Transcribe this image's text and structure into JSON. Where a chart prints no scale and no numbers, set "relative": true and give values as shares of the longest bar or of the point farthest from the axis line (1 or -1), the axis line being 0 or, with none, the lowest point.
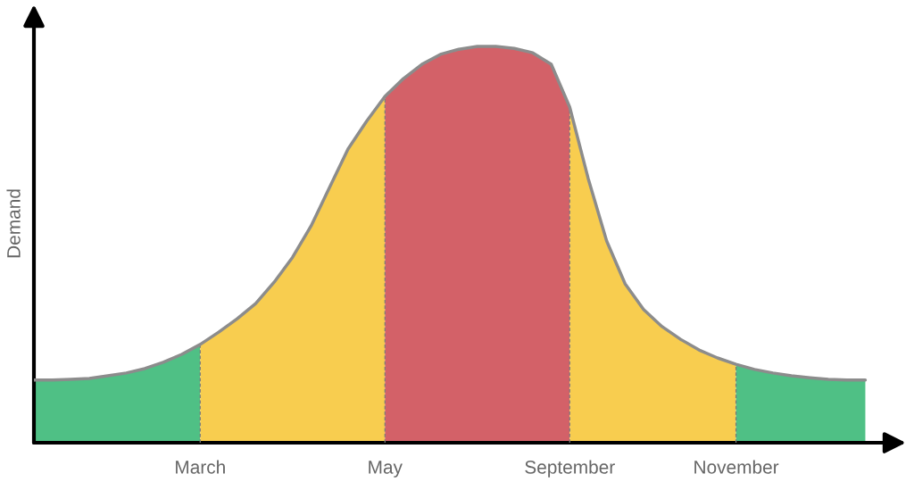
{
  "chart_data": {
    "type": "area",
    "relative": true,
    "ylabel": "Demand",
    "grid": false,
    "categories": [
      null,
      null,
      null,
      null,
      null,
      null,
      null,
      null,
      null,
      "March",
      null,
      null,
      null,
      null,
      null,
      null,
      null,
      null,
      null,
      "May",
      null,
      null,
      null,
      null,
      null,
      null,
      null,
      null,
      null,
      "September",
      null,
      null,
      null,
      null,
      null,
      null,
      null,
      null,
      "November",
      null,
      null,
      null,
      null,
      null,
      null,
      null
    ],
    "series": [
      {
        "color": "#4fc085",
        "values": [
          0.158,
          0.158,
          0.16,
          0.162,
          0.169,
          0.176,
          0.187,
          0.203,
          0.223,
          0.248,
          null,
          null,
          null,
          null,
          null,
          null,
          null,
          null,
          null,
          null,
          null,
          null,
          null,
          null,
          null,
          null,
          null,
          null,
          null,
          null,
          null,
          null,
          null,
          null,
          null,
          null,
          null,
          null,
          null,
          null,
          null,
          null,
          null,
          null,
          null,
          null
        ]
      },
      {
        "color": "#f8cd4f",
        "values": [
          null,
          null,
          null,
          null,
          null,
          null,
          null,
          null,
          null,
          0.248,
          0.279,
          0.313,
          0.351,
          0.405,
          0.468,
          0.547,
          0.644,
          0.741,
          0.811,
          0.874,
          null,
          null,
          null,
          null,
          null,
          null,
          null,
          null,
          null,
          null,
          null,
          null,
          null,
          null,
          null,
          null,
          null,
          null,
          null,
          null,
          null,
          null,
          null,
          null,
          null,
          null
        ]
      },
      {
        "color": "#d36168",
        "values": [
          null,
          null,
          null,
          null,
          null,
          null,
          null,
          null,
          null,
          null,
          null,
          null,
          null,
          null,
          null,
          null,
          null,
          null,
          null,
          0.874,
          0.919,
          0.955,
          0.98,
          0.993,
          1,
          1,
          0.995,
          0.984,
          0.955,
          0.847,
          null,
          null,
          null,
          null,
          null,
          null,
          null,
          null,
          null,
          null,
          null,
          null,
          null,
          null,
          null,
          null
        ]
      },
      {
        "color": "#f8cd4f",
        "values": [
          null,
          null,
          null,
          null,
          null,
          null,
          null,
          null,
          null,
          null,
          null,
          null,
          null,
          null,
          null,
          null,
          null,
          null,
          null,
          null,
          null,
          null,
          null,
          null,
          null,
          null,
          null,
          null,
          null,
          0.847,
          0.667,
          0.509,
          0.401,
          0.336,
          0.293,
          0.261,
          0.234,
          0.214,
          0.198,
          null,
          null,
          null,
          null,
          null,
          null,
          null
        ]
      },
      {
        "color": "#4fc085",
        "values": [
          null,
          null,
          null,
          null,
          null,
          null,
          null,
          null,
          null,
          null,
          null,
          null,
          null,
          null,
          null,
          null,
          null,
          null,
          null,
          null,
          null,
          null,
          null,
          null,
          null,
          null,
          null,
          null,
          null,
          null,
          null,
          null,
          null,
          null,
          null,
          null,
          null,
          null,
          0.198,
          0.185,
          0.176,
          0.169,
          0.164,
          0.16,
          0.158,
          0.158
        ]
      },
      {
        "type": "line",
        "color": "#8c8c8c",
        "values": [
          0.158,
          0.158,
          0.16,
          0.162,
          0.169,
          0.176,
          0.187,
          0.203,
          0.223,
          0.248,
          0.279,
          0.313,
          0.351,
          0.405,
          0.468,
          0.547,
          0.644,
          0.741,
          0.811,
          0.874,
          0.919,
          0.955,
          0.98,
          0.993,
          1,
          1,
          0.995,
          0.984,
          0.955,
          0.847,
          0.667,
          0.509,
          0.401,
          0.336,
          0.293,
          0.261,
          0.234,
          0.214,
          0.198,
          0.185,
          0.176,
          0.169,
          0.164,
          0.16,
          0.158,
          0.158
        ]
      }
    ],
    "ref_lines": [
      {
        "axis": "x",
        "value": "March",
        "color": "#7a7a7a",
        "line_style": "dashed"
      },
      {
        "axis": "x",
        "value": "May",
        "color": "#7a7a7a",
        "line_style": "dashed"
      },
      {
        "axis": "x",
        "value": "September",
        "color": "#7a7a7a",
        "line_style": "dashed"
      },
      {
        "axis": "x",
        "value": "November",
        "color": "#7a7a7a",
        "line_style": "dashed"
      }
    ]
  }
}
